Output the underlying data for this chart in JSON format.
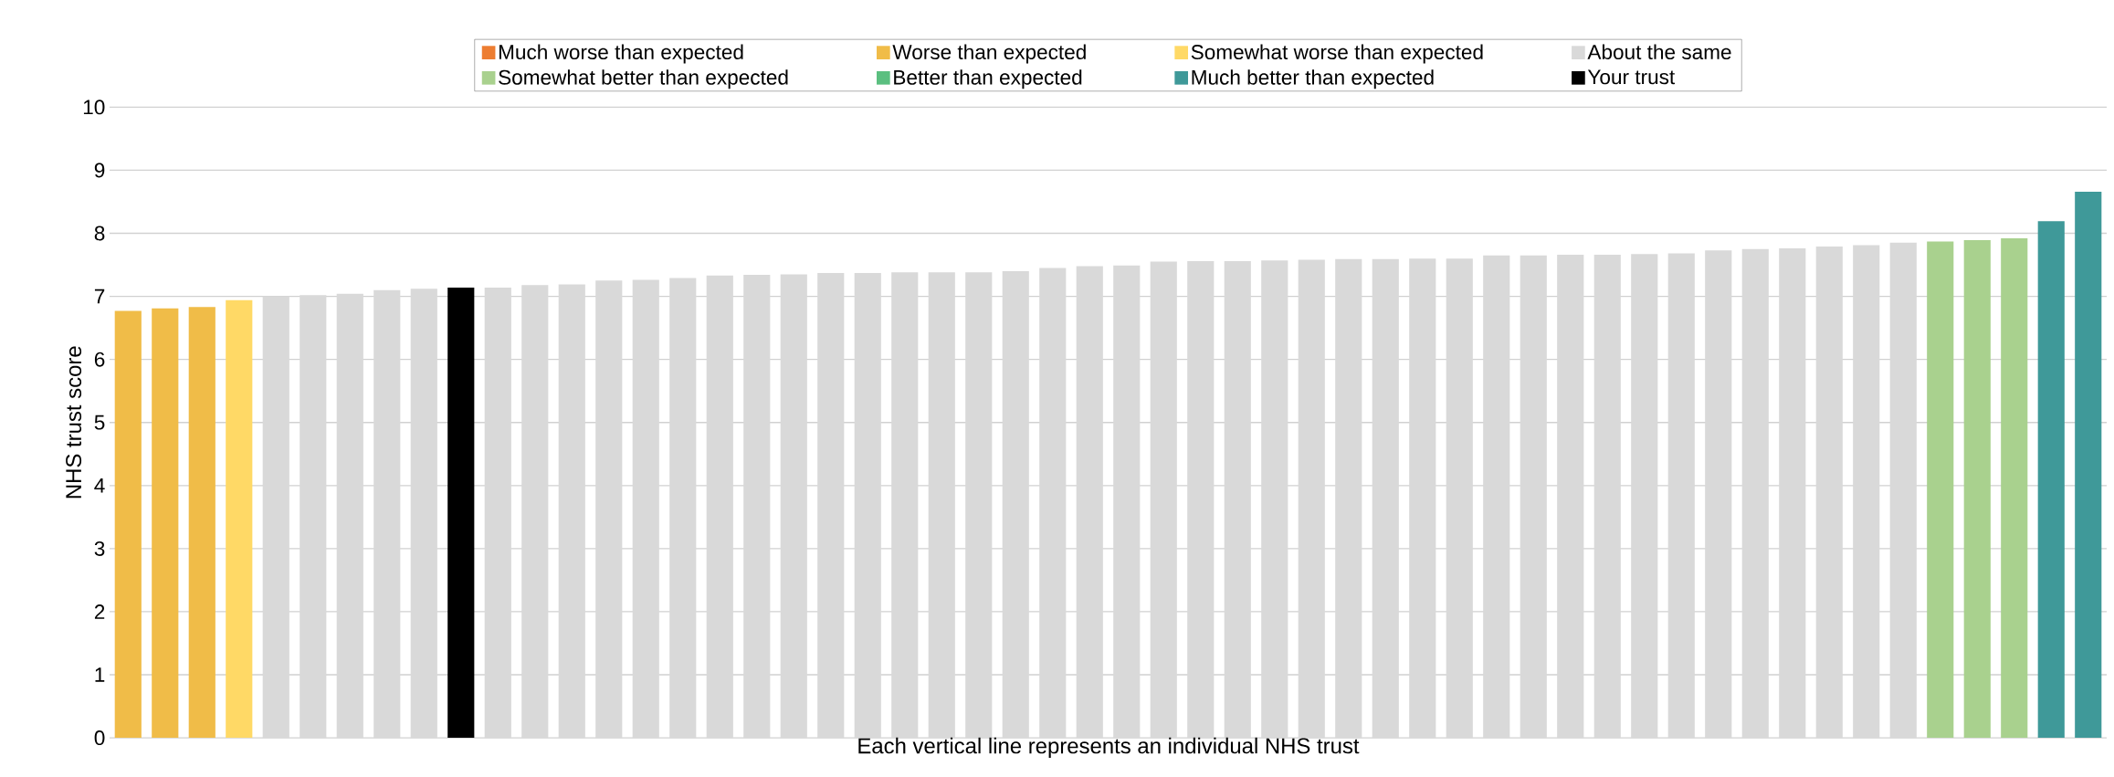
{
  "chart_data": {
    "type": "bar",
    "xlabel": "Each vertical line represents an individual NHS trust",
    "ylabel": "NHS trust score",
    "categories": [
      null,
      null,
      null,
      null,
      null,
      null,
      null,
      null,
      null,
      null,
      null,
      null,
      null,
      null,
      null,
      null,
      null,
      null,
      null,
      null,
      null,
      null,
      null,
      null,
      null,
      null,
      null,
      null,
      null,
      null,
      null,
      null,
      null,
      null,
      null,
      null,
      null,
      null,
      null,
      null,
      null,
      null,
      null,
      null,
      null,
      null,
      null,
      null,
      null,
      null,
      null,
      null,
      null,
      null
    ],
    "series": [
      {
        "name": "Much worse than expected",
        "color": "#ed7d31",
        "values": [
          null,
          null,
          null,
          null,
          null,
          null,
          null,
          null,
          null,
          null,
          null,
          null,
          null,
          null,
          null,
          null,
          null,
          null,
          null,
          null,
          null,
          null,
          null,
          null,
          null,
          null,
          null,
          null,
          null,
          null,
          null,
          null,
          null,
          null,
          null,
          null,
          null,
          null,
          null,
          null,
          null,
          null,
          null,
          null,
          null,
          null,
          null,
          null,
          null,
          null,
          null,
          null,
          null,
          null
        ]
      },
      {
        "name": "Worse than expected",
        "color": "#f0bc48",
        "values": [
          6.77,
          6.81,
          6.83,
          null,
          null,
          null,
          null,
          null,
          null,
          null,
          null,
          null,
          null,
          null,
          null,
          null,
          null,
          null,
          null,
          null,
          null,
          null,
          null,
          null,
          null,
          null,
          null,
          null,
          null,
          null,
          null,
          null,
          null,
          null,
          null,
          null,
          null,
          null,
          null,
          null,
          null,
          null,
          null,
          null,
          null,
          null,
          null,
          null,
          null,
          null,
          null,
          null,
          null,
          null
        ]
      },
      {
        "name": "Somewhat worse than expected",
        "color": "#ffd966",
        "values": [
          null,
          null,
          null,
          6.94,
          null,
          null,
          null,
          null,
          null,
          null,
          null,
          null,
          null,
          null,
          null,
          null,
          null,
          null,
          null,
          null,
          null,
          null,
          null,
          null,
          null,
          null,
          null,
          null,
          null,
          null,
          null,
          null,
          null,
          null,
          null,
          null,
          null,
          null,
          null,
          null,
          null,
          null,
          null,
          null,
          null,
          null,
          null,
          null,
          null,
          null,
          null,
          null,
          null,
          null
        ]
      },
      {
        "name": "About the same",
        "color": "#d9d9d9",
        "values": [
          null,
          null,
          null,
          null,
          7.0,
          7.02,
          7.04,
          7.1,
          7.12,
          null,
          7.14,
          7.18,
          7.19,
          7.25,
          7.26,
          7.29,
          7.33,
          7.34,
          7.35,
          7.37,
          7.37,
          7.38,
          7.38,
          7.38,
          7.4,
          7.45,
          7.48,
          7.49,
          7.55,
          7.56,
          7.56,
          7.57,
          7.58,
          7.59,
          7.59,
          7.6,
          7.6,
          7.65,
          7.65,
          7.66,
          7.66,
          7.67,
          7.68,
          7.73,
          7.75,
          7.76,
          7.79,
          7.81,
          7.85,
          null,
          null,
          null,
          null,
          null
        ]
      },
      {
        "name": "Somewhat better than expected",
        "color": "#a9d18e",
        "values": [
          null,
          null,
          null,
          null,
          null,
          null,
          null,
          null,
          null,
          null,
          null,
          null,
          null,
          null,
          null,
          null,
          null,
          null,
          null,
          null,
          null,
          null,
          null,
          null,
          null,
          null,
          null,
          null,
          null,
          null,
          null,
          null,
          null,
          null,
          null,
          null,
          null,
          null,
          null,
          null,
          null,
          null,
          null,
          null,
          null,
          null,
          null,
          null,
          null,
          7.87,
          7.89,
          7.92,
          null,
          null
        ]
      },
      {
        "name": "Better than expected",
        "color": "#5bbf80",
        "values": [
          null,
          null,
          null,
          null,
          null,
          null,
          null,
          null,
          null,
          null,
          null,
          null,
          null,
          null,
          null,
          null,
          null,
          null,
          null,
          null,
          null,
          null,
          null,
          null,
          null,
          null,
          null,
          null,
          null,
          null,
          null,
          null,
          null,
          null,
          null,
          null,
          null,
          null,
          null,
          null,
          null,
          null,
          null,
          null,
          null,
          null,
          null,
          null,
          null,
          null,
          null,
          null,
          null,
          null
        ]
      },
      {
        "name": "Much better than expected",
        "color": "#3f9999",
        "values": [
          null,
          null,
          null,
          null,
          null,
          null,
          null,
          null,
          null,
          null,
          null,
          null,
          null,
          null,
          null,
          null,
          null,
          null,
          null,
          null,
          null,
          null,
          null,
          null,
          null,
          null,
          null,
          null,
          null,
          null,
          null,
          null,
          null,
          null,
          null,
          null,
          null,
          null,
          null,
          null,
          null,
          null,
          null,
          null,
          null,
          null,
          null,
          null,
          null,
          null,
          null,
          null,
          8.19,
          8.66
        ]
      },
      {
        "name": "Your trust",
        "color": "#000000",
        "values": [
          null,
          null,
          null,
          null,
          null,
          null,
          null,
          null,
          null,
          7.14,
          null,
          null,
          null,
          null,
          null,
          null,
          null,
          null,
          null,
          null,
          null,
          null,
          null,
          null,
          null,
          null,
          null,
          null,
          null,
          null,
          null,
          null,
          null,
          null,
          null,
          null,
          null,
          null,
          null,
          null,
          null,
          null,
          null,
          null,
          null,
          null,
          null,
          null,
          null,
          null,
          null,
          null,
          null,
          null
        ]
      }
    ],
    "ylim": [
      0,
      10
    ],
    "yticks": [
      0,
      1,
      2,
      3,
      4,
      5,
      6,
      7,
      8,
      9,
      10
    ],
    "grid": "y",
    "legend": "top"
  }
}
